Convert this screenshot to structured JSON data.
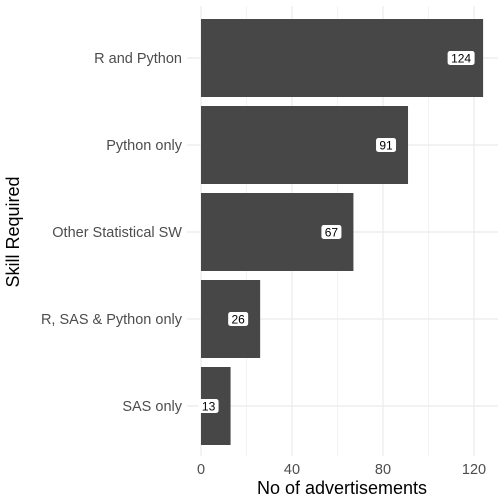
{
  "chart_data": {
    "type": "bar",
    "orientation": "horizontal",
    "categories": [
      "R and Python",
      "Python only",
      "Other Statistical SW",
      "R, SAS & Python only",
      "SAS only"
    ],
    "values": [
      124,
      91,
      67,
      26,
      13
    ],
    "xlabel": "No of  advertisements",
    "ylabel": "Skill Required",
    "xlim": [
      0,
      130
    ],
    "xticks": [
      0,
      40,
      80,
      120
    ],
    "grid": true,
    "legend": "none",
    "bar_color": "#474747",
    "grid_color": "#ebebeb",
    "label_box_color": "#ffffff"
  }
}
